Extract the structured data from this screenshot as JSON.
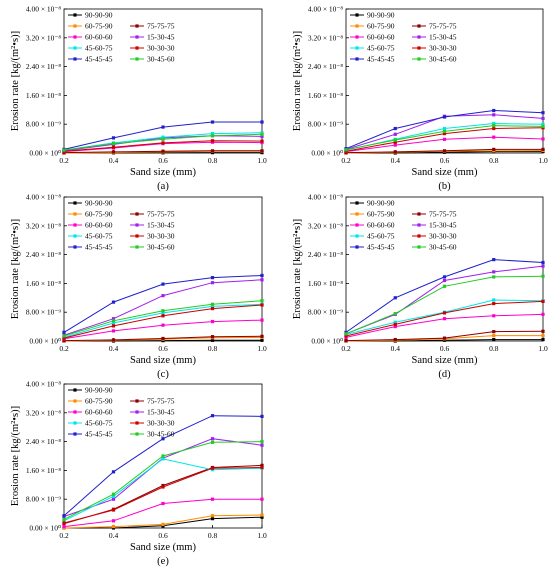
{
  "chart_data": [
    {
      "type": "line",
      "panel_label": "(a)",
      "xlabel": "Sand size (mm)",
      "ylabel": "Erosion rate [kg/(m²•s)]",
      "xlim": [
        0.2,
        1.0
      ],
      "ylim": [
        0,
        4e-08
      ],
      "x_ticks": [
        "0.2",
        "0.4",
        "0.6",
        "0.8",
        "1.0"
      ],
      "y_ticks": [
        "0.00 × 10⁰",
        "8.00 × 10⁻⁹",
        "1.60 × 10⁻⁸",
        "2.40 × 10⁻⁸",
        "3.20 × 10⁻⁸",
        "4.00 × 10⁻⁸"
      ],
      "x": [
        0.2,
        0.4,
        0.6,
        0.8,
        1.0
      ],
      "legend_position": "top-left",
      "series": [
        {
          "name": "90-90-90",
          "color": "#000000",
          "values": [
            0,
            0,
            5e-11,
            1e-10,
            1e-10
          ]
        },
        {
          "name": "60-75-90",
          "color": "#ff8c00",
          "values": [
            0,
            1e-10,
            3e-10,
            5e-10,
            5e-10
          ]
        },
        {
          "name": "75-75-75",
          "color": "#8b0000",
          "values": [
            1e-10,
            3e-10,
            5e-10,
            6e-10,
            6e-10
          ]
        },
        {
          "name": "60-60-60",
          "color": "#ff00cc",
          "values": [
            4e-10,
            1.4e-09,
            2.6e-09,
            3e-09,
            2.9e-09
          ]
        },
        {
          "name": "15-30-45",
          "color": "#a020f0",
          "values": [
            6e-10,
            2.4e-09,
            4.2e-09,
            4.8e-09,
            4.6e-09
          ]
        },
        {
          "name": "45-60-75",
          "color": "#00e5e5",
          "values": [
            8e-10,
            2.8e-09,
            4.4e-09,
            5.4e-09,
            5.6e-09
          ]
        },
        {
          "name": "30-30-30",
          "color": "#cc0000",
          "values": [
            5e-10,
            1.6e-09,
            2.8e-09,
            3.4e-09,
            3.3e-09
          ]
        },
        {
          "name": "45-45-45",
          "color": "#2020cc",
          "values": [
            1e-09,
            4.2e-09,
            7.2e-09,
            8.6e-09,
            8.6e-09
          ]
        },
        {
          "name": "30-45-60",
          "color": "#22cc22",
          "values": [
            8e-10,
            2.6e-09,
            3.8e-09,
            4.8e-09,
            5.2e-09
          ]
        }
      ]
    },
    {
      "type": "line",
      "panel_label": "(b)",
      "xlabel": "Sand size (mm)",
      "ylabel": "Erosion rate [kg/(m²•s)]",
      "xlim": [
        0.2,
        1.0
      ],
      "ylim": [
        0,
        4e-08
      ],
      "x_ticks": [
        "0.2",
        "0.4",
        "0.6",
        "0.8",
        "1.0"
      ],
      "y_ticks": [
        "0.00 × 10⁰",
        "8.00 × 10⁻⁹",
        "1.60 × 10⁻⁸",
        "2.40 × 10⁻⁸",
        "3.20 × 10⁻⁸",
        "4.00 × 10⁻⁸"
      ],
      "x": [
        0.2,
        0.4,
        0.6,
        0.8,
        1.0
      ],
      "legend_position": "top-left",
      "series": [
        {
          "name": "90-90-90",
          "color": "#000000",
          "values": [
            0,
            0,
            2e-10,
            4e-10,
            4e-10
          ]
        },
        {
          "name": "60-75-90",
          "color": "#ff8c00",
          "values": [
            0,
            2e-10,
            5e-10,
            6e-10,
            7e-10
          ]
        },
        {
          "name": "75-75-75",
          "color": "#8b0000",
          "values": [
            1e-10,
            3e-10,
            6e-10,
            1e-09,
            1e-09
          ]
        },
        {
          "name": "60-60-60",
          "color": "#ff00cc",
          "values": [
            4e-10,
            2.2e-09,
            3.8e-09,
            4.4e-09,
            3.9e-09
          ]
        },
        {
          "name": "15-30-45",
          "color": "#a020f0",
          "values": [
            1e-09,
            5.2e-09,
            1.02e-08,
            1.06e-08,
            9.6e-09
          ]
        },
        {
          "name": "45-60-75",
          "color": "#00e5e5",
          "values": [
            8e-10,
            3.8e-09,
            6.8e-09,
            8.2e-09,
            8e-09
          ]
        },
        {
          "name": "30-30-30",
          "color": "#cc0000",
          "values": [
            5e-10,
            3e-09,
            5.4e-09,
            6.8e-09,
            7e-09
          ]
        },
        {
          "name": "45-45-45",
          "color": "#2020cc",
          "values": [
            1.2e-09,
            6.8e-09,
            1e-08,
            1.18e-08,
            1.12e-08
          ]
        },
        {
          "name": "30-45-60",
          "color": "#22cc22",
          "values": [
            9e-10,
            3.6e-09,
            6e-09,
            7.6e-09,
            7.4e-09
          ]
        }
      ]
    },
    {
      "type": "line",
      "panel_label": "(c)",
      "xlabel": "Sand size (mm)",
      "ylabel": "Erosion rate [kg/(m²•s)]",
      "xlim": [
        0.2,
        1.0
      ],
      "ylim": [
        0,
        4e-08
      ],
      "x_ticks": [
        "0.2",
        "0.4",
        "0.6",
        "0.8",
        "1.0"
      ],
      "y_ticks": [
        "0.00 × 10⁰",
        "8.00 × 10⁻⁹",
        "1.60 × 10⁻⁸",
        "2.40 × 10⁻⁸",
        "3.20 × 10⁻⁸",
        "4.00 × 10⁻⁸"
      ],
      "x": [
        0.2,
        0.4,
        0.6,
        0.8,
        1.0
      ],
      "legend_position": "top-left",
      "series": [
        {
          "name": "90-90-90",
          "color": "#000000",
          "values": [
            0,
            0,
            1e-10,
            2e-10,
            2e-10
          ]
        },
        {
          "name": "60-75-90",
          "color": "#ff8c00",
          "values": [
            0,
            2e-10,
            5e-10,
            9e-10,
            1e-09
          ]
        },
        {
          "name": "75-75-75",
          "color": "#8b0000",
          "values": [
            1e-10,
            3e-10,
            7e-10,
            1.2e-09,
            1.3e-09
          ]
        },
        {
          "name": "60-60-60",
          "color": "#ff00cc",
          "values": [
            6e-10,
            2.8e-09,
            4.4e-09,
            5.4e-09,
            5.8e-09
          ]
        },
        {
          "name": "15-30-45",
          "color": "#a020f0",
          "values": [
            1.6e-09,
            6.2e-09,
            1.26e-08,
            1.62e-08,
            1.7e-08
          ]
        },
        {
          "name": "45-60-75",
          "color": "#00e5e5",
          "values": [
            1e-09,
            5e-09,
            7.8e-09,
            9.6e-09,
            1.02e-08
          ]
        },
        {
          "name": "30-30-30",
          "color": "#cc0000",
          "values": [
            8e-10,
            4.2e-09,
            7e-09,
            9e-09,
            1e-08
          ]
        },
        {
          "name": "45-45-45",
          "color": "#2020cc",
          "values": [
            2.4e-09,
            1.08e-08,
            1.58e-08,
            1.76e-08,
            1.82e-08
          ]
        },
        {
          "name": "30-45-60",
          "color": "#22cc22",
          "values": [
            1.4e-09,
            5.6e-09,
            8.4e-09,
            1.02e-08,
            1.12e-08
          ]
        }
      ]
    },
    {
      "type": "line",
      "panel_label": "(d)",
      "xlabel": "Sand size (mm)",
      "ylabel": "Erosion rate [kg/(m²•s)]",
      "xlim": [
        0.2,
        1.0
      ],
      "ylim": [
        0,
        4e-08
      ],
      "x_ticks": [
        "0.2",
        "0.4",
        "0.6",
        "0.8",
        "1.0"
      ],
      "y_ticks": [
        "0.00 × 10⁰",
        "8.00 × 10⁻⁹",
        "1.60 × 10⁻⁸",
        "2.40 × 10⁻⁸",
        "3.20 × 10⁻⁸",
        "4.00 × 10⁻⁸"
      ],
      "x": [
        0.2,
        0.4,
        0.6,
        0.8,
        1.0
      ],
      "legend_position": "top-left",
      "series": [
        {
          "name": "90-90-90",
          "color": "#000000",
          "values": [
            0,
            0,
            2e-10,
            4e-10,
            4e-10
          ]
        },
        {
          "name": "60-75-90",
          "color": "#ff8c00",
          "values": [
            0,
            2e-10,
            6e-10,
            1.5e-09,
            1.5e-09
          ]
        },
        {
          "name": "75-75-75",
          "color": "#8b0000",
          "values": [
            1e-10,
            4e-10,
            8e-10,
            2.6e-09,
            2.7e-09
          ]
        },
        {
          "name": "60-60-60",
          "color": "#ff00cc",
          "values": [
            1e-09,
            4e-09,
            6.2e-09,
            7e-09,
            7.4e-09
          ]
        },
        {
          "name": "15-30-45",
          "color": "#a020f0",
          "values": [
            2e-09,
            7.4e-09,
            1.68e-08,
            1.92e-08,
            2.08e-08
          ]
        },
        {
          "name": "45-60-75",
          "color": "#00e5e5",
          "values": [
            1.8e-09,
            5.2e-09,
            8e-09,
            1.14e-08,
            1.12e-08
          ]
        },
        {
          "name": "30-30-30",
          "color": "#cc0000",
          "values": [
            1.4e-09,
            4.6e-09,
            7.8e-09,
            1.04e-08,
            1.1e-08
          ]
        },
        {
          "name": "45-45-45",
          "color": "#2020cc",
          "values": [
            2.4e-09,
            1.2e-08,
            1.78e-08,
            2.26e-08,
            2.18e-08
          ]
        },
        {
          "name": "30-45-60",
          "color": "#22cc22",
          "values": [
            2e-09,
            7.6e-09,
            1.52e-08,
            1.78e-08,
            1.8e-08
          ]
        }
      ]
    },
    {
      "type": "line",
      "panel_label": "(e)",
      "xlabel": "Sand size (mm)",
      "ylabel": "Erosion rate [kg/(m²•s)]",
      "xlim": [
        0.2,
        1.0
      ],
      "ylim": [
        0,
        4e-08
      ],
      "x_ticks": [
        "0.2",
        "0.4",
        "0.6",
        "0.8",
        "1.0"
      ],
      "y_ticks": [
        "0.00 × 10⁰",
        "8.00 × 10⁻⁹",
        "1.60 × 10⁻⁸",
        "2.40 × 10⁻⁸",
        "3.20 × 10⁻⁸",
        "4.00 × 10⁻⁸"
      ],
      "x": [
        0.2,
        0.4,
        0.6,
        0.8,
        1.0
      ],
      "legend_position": "top-left",
      "series": [
        {
          "name": "90-90-90",
          "color": "#000000",
          "values": [
            0,
            0,
            6e-10,
            2.6e-09,
            3e-09
          ]
        },
        {
          "name": "60-75-90",
          "color": "#ff8c00",
          "values": [
            0,
            4e-10,
            1e-09,
            3.4e-09,
            3.6e-09
          ]
        },
        {
          "name": "75-75-75",
          "color": "#8b0000",
          "values": [
            1.2e-09,
            5.2e-09,
            1.18e-08,
            1.68e-08,
            1.74e-08
          ]
        },
        {
          "name": "60-60-60",
          "color": "#ff00cc",
          "values": [
            4e-10,
            2e-09,
            6.8e-09,
            8e-09,
            8e-09
          ]
        },
        {
          "name": "15-30-45",
          "color": "#a020f0",
          "values": [
            3.2e-09,
            8e-09,
            1.94e-08,
            2.48e-08,
            2.3e-08
          ]
        },
        {
          "name": "45-60-75",
          "color": "#00e5e5",
          "values": [
            2e-09,
            8.8e-09,
            1.92e-08,
            1.62e-08,
            1.66e-08
          ]
        },
        {
          "name": "30-30-30",
          "color": "#cc0000",
          "values": [
            1.4e-09,
            5e-09,
            1.14e-08,
            1.66e-08,
            1.68e-08
          ]
        },
        {
          "name": "45-45-45",
          "color": "#2020cc",
          "values": [
            3.4e-09,
            1.56e-08,
            2.48e-08,
            3.12e-08,
            3.1e-08
          ]
        },
        {
          "name": "30-45-60",
          "color": "#22cc22",
          "values": [
            2.4e-09,
            9.4e-09,
            2e-08,
            2.38e-08,
            2.4e-08
          ]
        }
      ]
    }
  ]
}
